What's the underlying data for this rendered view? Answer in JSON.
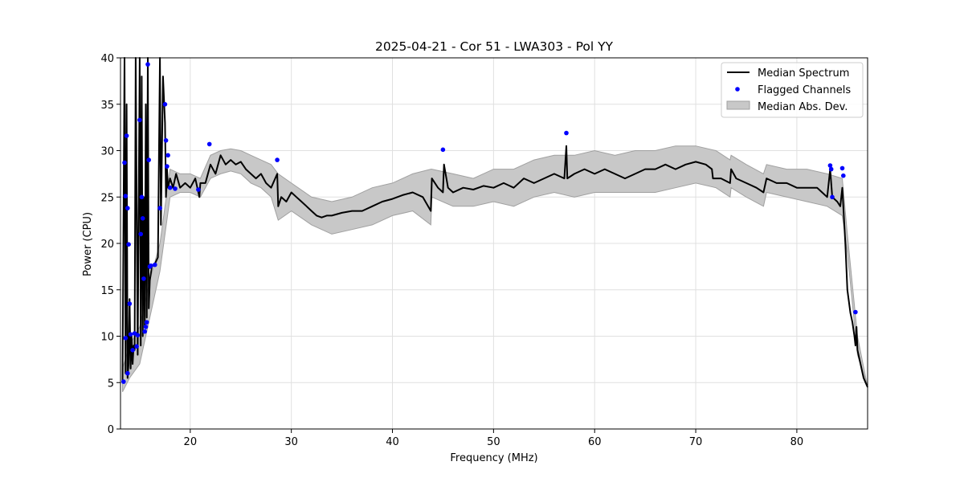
{
  "chart_data": {
    "type": "line",
    "title": "2025-04-21 - Cor 51 - LWA303 - Pol YY",
    "xlabel": "Frequency (MHz)",
    "ylabel": "Power (CPU)",
    "xlim": [
      13.1,
      87.0
    ],
    "ylim": [
      0,
      40
    ],
    "xticks": [
      20,
      30,
      40,
      50,
      60,
      70,
      80
    ],
    "yticks": [
      0,
      5,
      10,
      15,
      20,
      25,
      30,
      35,
      40
    ],
    "grid": true,
    "legend_position": "top-right",
    "legend": [
      "Median Spectrum",
      "Flagged Channels",
      "Median Abs. Dev."
    ],
    "colors": {
      "line": "#000000",
      "points": "#0000ff",
      "band": "#c8c8c8",
      "band_edge": "#a0a0a0",
      "grid": "#e0e0e0"
    },
    "series": [
      {
        "name": "Median Spectrum",
        "x": [
          13.3,
          13.5,
          13.6,
          13.7,
          13.8,
          13.9,
          14.0,
          14.1,
          14.2,
          14.3,
          14.4,
          14.5,
          14.6,
          14.8,
          15.0,
          15.1,
          15.2,
          15.3,
          15.4,
          15.5,
          15.6,
          15.7,
          15.8,
          15.9,
          16.0,
          16.2,
          16.5,
          16.8,
          17.0,
          17.1,
          17.3,
          17.5,
          17.6,
          17.7,
          17.8,
          18.0,
          18.3,
          18.6,
          19.0,
          19.5,
          20.0,
          20.5,
          20.9,
          21.0,
          21.5,
          22.0,
          22.5,
          23.0,
          23.5,
          24.0,
          24.5,
          25.0,
          25.5,
          26.0,
          26.5,
          27.0,
          27.5,
          28.0,
          28.6,
          28.7,
          29.0,
          29.5,
          30.0,
          30.5,
          31.0,
          31.5,
          32.0,
          32.5,
          33.0,
          33.5,
          34.0,
          35.0,
          36.0,
          37.0,
          38.0,
          39.0,
          40.0,
          41.0,
          42.0,
          43.0,
          43.8,
          43.9,
          44.5,
          45.0,
          45.1,
          45.5,
          46.0,
          47.0,
          48.0,
          49.0,
          50.0,
          51.0,
          52.0,
          53.0,
          54.0,
          55.0,
          56.0,
          57.0,
          57.2,
          57.3,
          58.0,
          59.0,
          60.0,
          61.0,
          62.0,
          63.0,
          64.0,
          65.0,
          66.0,
          67.0,
          68.0,
          69.0,
          70.0,
          71.0,
          71.6,
          71.7,
          72.5,
          73.4,
          73.5,
          74.0,
          75.0,
          76.0,
          76.7,
          77.0,
          78.0,
          79.0,
          80.0,
          81.0,
          82.0,
          82.5,
          83.0,
          83.3,
          83.5,
          84.0,
          84.3,
          84.5,
          84.8,
          85.0,
          85.3,
          85.5,
          85.7,
          85.8,
          85.9,
          86.0,
          86.3,
          86.6,
          87.0
        ],
        "y": [
          5.0,
          40.0,
          6.0,
          35.0,
          5.5,
          7.0,
          14.0,
          6.5,
          10.0,
          7.0,
          9.0,
          8.5,
          40.0,
          8.0,
          40.0,
          9.0,
          38.0,
          10.0,
          25.0,
          11.0,
          35.0,
          12.0,
          40.0,
          13.0,
          16.0,
          17.5,
          17.8,
          18.5,
          40.0,
          22.0,
          38.0,
          33.0,
          25.0,
          28.0,
          26.0,
          27.0,
          26.0,
          27.5,
          26.0,
          26.5,
          26.0,
          27.0,
          25.0,
          26.5,
          26.5,
          28.5,
          27.5,
          29.5,
          28.5,
          29.0,
          28.5,
          28.8,
          28.0,
          27.5,
          27.0,
          27.5,
          26.5,
          26.0,
          27.5,
          24.0,
          25.0,
          24.5,
          25.5,
          25.0,
          24.5,
          24.0,
          23.5,
          23.0,
          22.8,
          23.0,
          23.0,
          23.3,
          23.5,
          23.5,
          24.0,
          24.5,
          24.8,
          25.2,
          25.5,
          25.0,
          23.5,
          27.0,
          26.0,
          25.5,
          28.5,
          26.0,
          25.5,
          26.0,
          25.8,
          26.2,
          26.0,
          26.5,
          26.0,
          27.0,
          26.5,
          27.0,
          27.5,
          27.0,
          30.5,
          27.0,
          27.5,
          28.0,
          27.5,
          28.0,
          27.5,
          27.0,
          27.5,
          28.0,
          28.0,
          28.5,
          28.0,
          28.5,
          28.8,
          28.5,
          28.0,
          27.0,
          27.0,
          26.5,
          28.0,
          27.0,
          26.5,
          26.0,
          25.5,
          27.0,
          26.5,
          26.5,
          26.0,
          26.0,
          26.0,
          25.5,
          25.0,
          28.0,
          25.0,
          24.5,
          24.0,
          26.0,
          20.0,
          15.0,
          12.5,
          11.5,
          10.0,
          9.0,
          11.0,
          8.5,
          7.0,
          5.5,
          4.5
        ]
      }
    ],
    "band": {
      "name": "Median Abs. Dev.",
      "x": [
        13.3,
        14.0,
        15.0,
        16.0,
        17.0,
        18.0,
        19.0,
        20.0,
        21.0,
        22.0,
        23.0,
        24.0,
        25.0,
        26.0,
        27.0,
        28.0,
        28.7,
        30.0,
        32.0,
        34.0,
        36.0,
        38.0,
        40.0,
        42.0,
        43.8,
        43.9,
        46.0,
        48.0,
        50.0,
        52.0,
        54.0,
        56.0,
        58.0,
        60.0,
        62.0,
        64.0,
        66.0,
        68.0,
        70.0,
        72.0,
        73.4,
        73.5,
        75.0,
        76.7,
        77.0,
        79.0,
        81.0,
        83.0,
        84.5,
        85.0,
        86.0,
        87.0
      ],
      "lower": [
        4.0,
        5.5,
        7.0,
        12.0,
        17.0,
        25.0,
        25.5,
        25.5,
        25.0,
        27.0,
        27.5,
        27.8,
        27.5,
        26.5,
        26.0,
        25.0,
        22.5,
        23.5,
        22.0,
        21.0,
        21.5,
        22.0,
        23.0,
        23.5,
        22.0,
        25.0,
        24.0,
        24.0,
        24.5,
        24.0,
        25.0,
        25.5,
        25.0,
        25.5,
        25.5,
        25.5,
        25.5,
        26.0,
        26.5,
        26.0,
        25.0,
        26.0,
        25.0,
        24.0,
        25.5,
        25.0,
        24.5,
        24.0,
        23.0,
        19.0,
        8.0,
        4.5
      ],
      "upper": [
        6.5,
        9.0,
        11.0,
        16.0,
        20.0,
        28.0,
        27.5,
        27.5,
        27.0,
        29.5,
        30.0,
        30.2,
        30.0,
        29.5,
        29.0,
        28.5,
        27.5,
        26.5,
        25.0,
        24.5,
        25.0,
        26.0,
        26.5,
        27.5,
        28.0,
        28.0,
        27.5,
        27.0,
        28.0,
        28.0,
        29.0,
        29.5,
        29.5,
        30.0,
        29.5,
        30.0,
        30.0,
        30.5,
        30.5,
        30.0,
        29.0,
        29.5,
        28.5,
        27.5,
        28.5,
        28.0,
        28.0,
        27.5,
        27.0,
        21.0,
        10.0,
        4.5
      ]
    },
    "flagged_points": {
      "name": "Flagged Channels",
      "x": [
        13.4,
        13.5,
        13.6,
        13.7,
        13.8,
        13.9,
        14.0,
        14.1,
        13.6,
        13.8,
        14.3,
        14.5,
        14.7,
        14.8,
        15.0,
        15.1,
        15.2,
        15.3,
        15.4,
        15.5,
        15.6,
        15.7,
        15.8,
        15.9,
        16.0,
        16.1,
        16.5,
        17.0,
        17.5,
        17.6,
        17.7,
        17.8,
        18.0,
        18.5,
        20.8,
        21.9,
        28.6,
        45.0,
        57.2,
        83.3,
        83.4,
        83.5,
        84.5,
        84.6,
        85.8
      ],
      "y": [
        5.1,
        28.7,
        25.1,
        31.6,
        23.8,
        19.9,
        13.5,
        10.2,
        9.8,
        6.0,
        8.5,
        10.3,
        8.9,
        10.1,
        33.3,
        21.0,
        25.0,
        22.7,
        16.2,
        10.5,
        11.0,
        11.5,
        39.3,
        29.0,
        17.5,
        17.6,
        17.7,
        23.8,
        35.0,
        31.1,
        28.3,
        29.5,
        26.0,
        25.9,
        25.8,
        30.7,
        29.0,
        30.1,
        31.9,
        28.4,
        28.0,
        25.0,
        28.1,
        27.3,
        12.6
      ]
    }
  }
}
